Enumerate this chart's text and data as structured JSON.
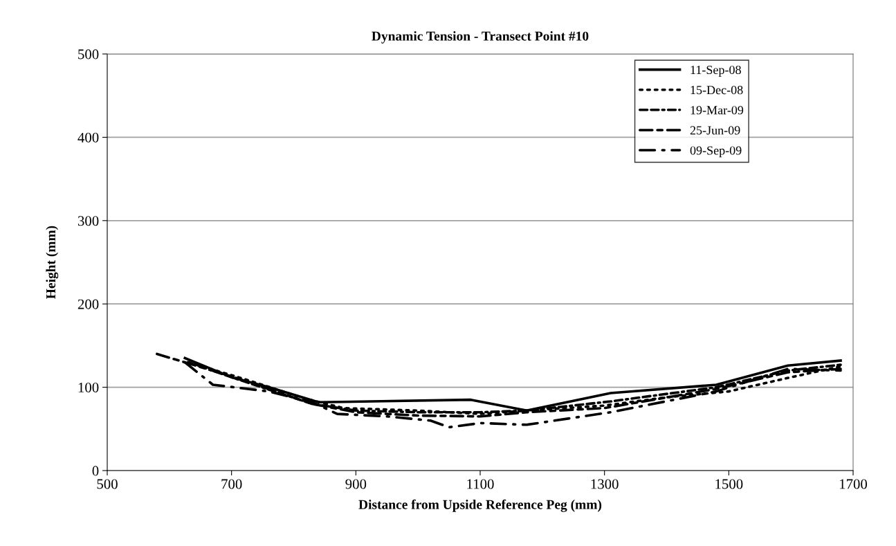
{
  "chart_data": {
    "type": "line",
    "title": "Dynamic Tension - Transect Point #10",
    "xlabel": "Distance from Upside Reference Peg (mm)",
    "ylabel": "Height (mm)",
    "xlim": [
      500,
      1700
    ],
    "xticks": [
      500,
      700,
      900,
      1100,
      1300,
      1500,
      1700
    ],
    "ylim": [
      0,
      500
    ],
    "yticks": [
      0,
      100,
      200,
      300,
      400,
      500
    ],
    "grid": "y",
    "legend": "top right",
    "series": [
      {
        "name": "11-Sep-08",
        "color": "#000000",
        "line_style": "solid",
        "x": [
          625,
          700,
          760,
          840,
          1085,
          1175,
          1310,
          1480,
          1595,
          1680
        ],
        "values": [
          135,
          112,
          100,
          82,
          85,
          72,
          93,
          103,
          126,
          132
        ]
      },
      {
        "name": "15-Dec-08",
        "color": "#000000",
        "line_style": "dotted",
        "x": [
          630,
          720,
          820,
          880,
          1000,
          1100,
          1175,
          1300,
          1400,
          1500,
          1600,
          1680
        ],
        "values": [
          130,
          110,
          86,
          75,
          72,
          68,
          72,
          78,
          88,
          95,
          112,
          125
        ]
      },
      {
        "name": "19-Mar-09",
        "color": "#000000",
        "line_style": "dashdot",
        "x": [
          630,
          700,
          830,
          900,
          1000,
          1100,
          1175,
          1310,
          1480,
          1595,
          1680
        ],
        "values": [
          130,
          112,
          80,
          72,
          70,
          70,
          72,
          83,
          100,
          120,
          127
        ]
      },
      {
        "name": "25-Jun-09",
        "color": "#000000",
        "line_style": "dashed",
        "x": [
          580,
          700,
          830,
          900,
          1000,
          1100,
          1175,
          1300,
          1480,
          1595,
          1680
        ],
        "values": [
          140,
          113,
          80,
          70,
          66,
          65,
          70,
          75,
          98,
          118,
          122
        ]
      },
      {
        "name": "09-Sep-09",
        "color": "#000000",
        "line_style": "longdashdot",
        "x": [
          625,
          670,
          760,
          830,
          870,
          950,
          1020,
          1050,
          1100,
          1175,
          1310,
          1480,
          1595,
          1680
        ],
        "values": [
          130,
          103,
          95,
          82,
          68,
          65,
          60,
          52,
          57,
          55,
          70,
          95,
          122,
          120
        ]
      }
    ]
  }
}
